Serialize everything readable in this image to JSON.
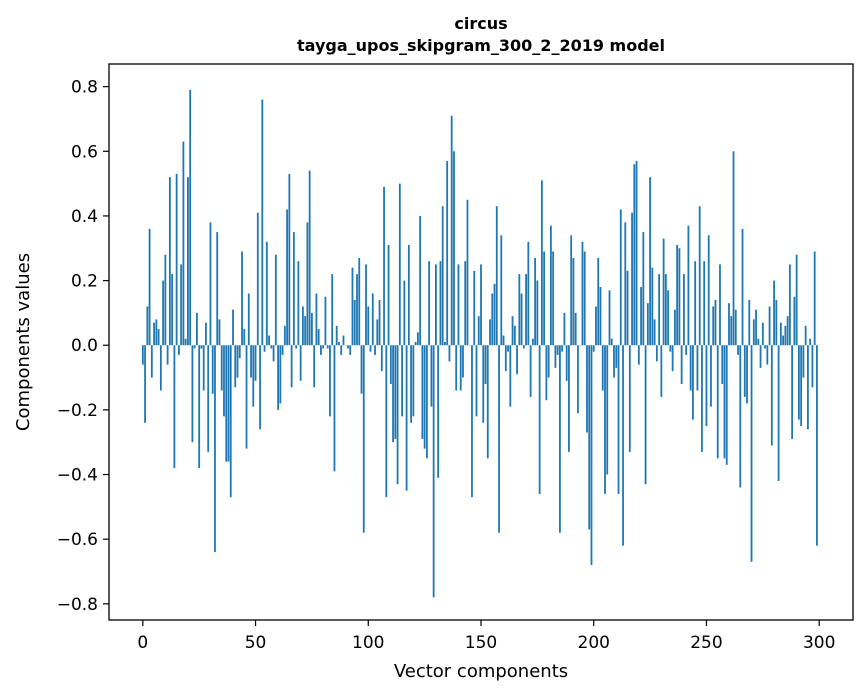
{
  "chart_data": {
    "type": "bar",
    "title": "circus",
    "subtitle": "tayga_upos_skipgram_300_2_2019 model",
    "xlabel": "Vector components",
    "ylabel": "Components values",
    "xlim": [
      -15,
      315
    ],
    "ylim": [
      -0.85,
      0.87
    ],
    "xticks": [
      0,
      50,
      100,
      150,
      200,
      250,
      300
    ],
    "xtick_labels": [
      "0",
      "50",
      "100",
      "150",
      "200",
      "250",
      "300"
    ],
    "yticks": [
      -0.8,
      -0.6,
      -0.4,
      -0.2,
      0.0,
      0.2,
      0.4,
      0.6,
      0.8
    ],
    "ytick_labels": [
      "−0.8",
      "−0.6",
      "−0.4",
      "−0.2",
      "0.0",
      "0.2",
      "0.4",
      "0.6",
      "0.8"
    ],
    "grid": false,
    "bar_color": "#1f77b4",
    "x": "0..299",
    "values": [
      -0.06,
      -0.24,
      0.12,
      0.36,
      -0.1,
      0.07,
      0.08,
      0.05,
      -0.14,
      0.2,
      0.28,
      -0.06,
      0.52,
      0.22,
      -0.38,
      0.53,
      -0.03,
      0.25,
      0.63,
      0.02,
      0.52,
      0.79,
      -0.3,
      -0.01,
      0.1,
      -0.38,
      -0.01,
      -0.14,
      0.07,
      -0.33,
      0.38,
      -0.15,
      -0.64,
      0.35,
      0.08,
      -0.14,
      -0.22,
      -0.36,
      -0.36,
      -0.47,
      0.11,
      -0.13,
      -0.1,
      -0.04,
      0.29,
      0.05,
      -0.32,
      0.16,
      -0.1,
      -0.19,
      -0.11,
      0.41,
      -0.26,
      0.76,
      -0.02,
      0.32,
      0.03,
      -0.01,
      -0.05,
      0.28,
      -0.2,
      -0.18,
      -0.03,
      0.06,
      0.42,
      0.53,
      -0.13,
      0.35,
      -0.01,
      0.26,
      -0.11,
      0.12,
      0.09,
      0.38,
      0.54,
      0.1,
      -0.13,
      0.16,
      0.05,
      -0.03,
      -0.01,
      0.15,
      -0.01,
      -0.22,
      0.22,
      -0.39,
      0.06,
      0.01,
      -0.03,
      0.03,
      0.0,
      -0.01,
      -0.03,
      0.24,
      0.14,
      0.22,
      0.27,
      -0.15,
      -0.58,
      0.25,
      0.12,
      -0.02,
      0.16,
      -0.03,
      0.08,
      0.14,
      -0.08,
      0.49,
      -0.47,
      0.31,
      -0.12,
      -0.3,
      -0.29,
      -0.43,
      0.5,
      -0.22,
      0.2,
      -0.45,
      0.31,
      -0.24,
      -0.22,
      0.01,
      0.04,
      0.4,
      -0.29,
      -0.32,
      -0.35,
      0.26,
      -0.19,
      -0.78,
      0.25,
      -0.41,
      0.26,
      0.43,
      0.01,
      0.57,
      -0.05,
      0.71,
      0.6,
      -0.14,
      0.25,
      -0.14,
      -0.1,
      0.26,
      0.45,
      0.0,
      -0.47,
      0.23,
      -0.22,
      0.09,
      0.25,
      -0.24,
      -0.12,
      -0.35,
      0.08,
      0.16,
      0.19,
      0.43,
      -0.58,
      0.34,
      0.03,
      -0.08,
      -0.02,
      -0.19,
      0.09,
      0.06,
      -0.09,
      0.22,
      0.16,
      -0.01,
      0.22,
      0.32,
      -0.16,
      0.02,
      0.27,
      0.2,
      -0.46,
      0.51,
      0.29,
      -0.17,
      -0.1,
      0.37,
      0.29,
      -0.07,
      -0.03,
      -0.58,
      -0.02,
      0.1,
      -0.11,
      -0.33,
      0.34,
      0.27,
      0.1,
      -0.21,
      0.0,
      0.32,
      0.29,
      -0.27,
      -0.57,
      -0.68,
      -0.02,
      0.12,
      0.27,
      0.18,
      -0.14,
      -0.46,
      -0.4,
      0.17,
      0.02,
      -0.1,
      -0.07,
      -0.46,
      0.42,
      -0.62,
      0.38,
      0.23,
      -0.33,
      0.41,
      0.56,
      0.57,
      -0.06,
      0.18,
      0.35,
      -0.43,
      0.13,
      0.52,
      0.24,
      0.08,
      -0.05,
      0.22,
      -0.16,
      0.33,
      0.22,
      0.17,
      -0.02,
      -0.08,
      0.11,
      0.31,
      0.3,
      -0.12,
      0.22,
      -0.03,
      0.37,
      -0.14,
      -0.23,
      0.26,
      -0.14,
      0.43,
      -0.33,
      0.26,
      -0.25,
      0.34,
      -0.19,
      0.12,
      0.14,
      -0.35,
      0.25,
      -0.12,
      -0.35,
      -0.37,
      0.13,
      0.09,
      0.6,
      0.11,
      -0.03,
      -0.44,
      0.36,
      -0.16,
      -0.18,
      0.14,
      -0.67,
      0.08,
      0.11,
      0.02,
      -0.07,
      0.07,
      -0.01,
      -0.06,
      0.12,
      -0.31,
      0.2,
      0.14,
      -0.42,
      0.07,
      0.03,
      0.06,
      0.09,
      0.25,
      -0.29,
      0.15,
      0.28,
      -0.23,
      -0.25,
      -0.1,
      0.06,
      -0.26,
      0.02,
      -0.13,
      0.29,
      -0.62
    ]
  }
}
